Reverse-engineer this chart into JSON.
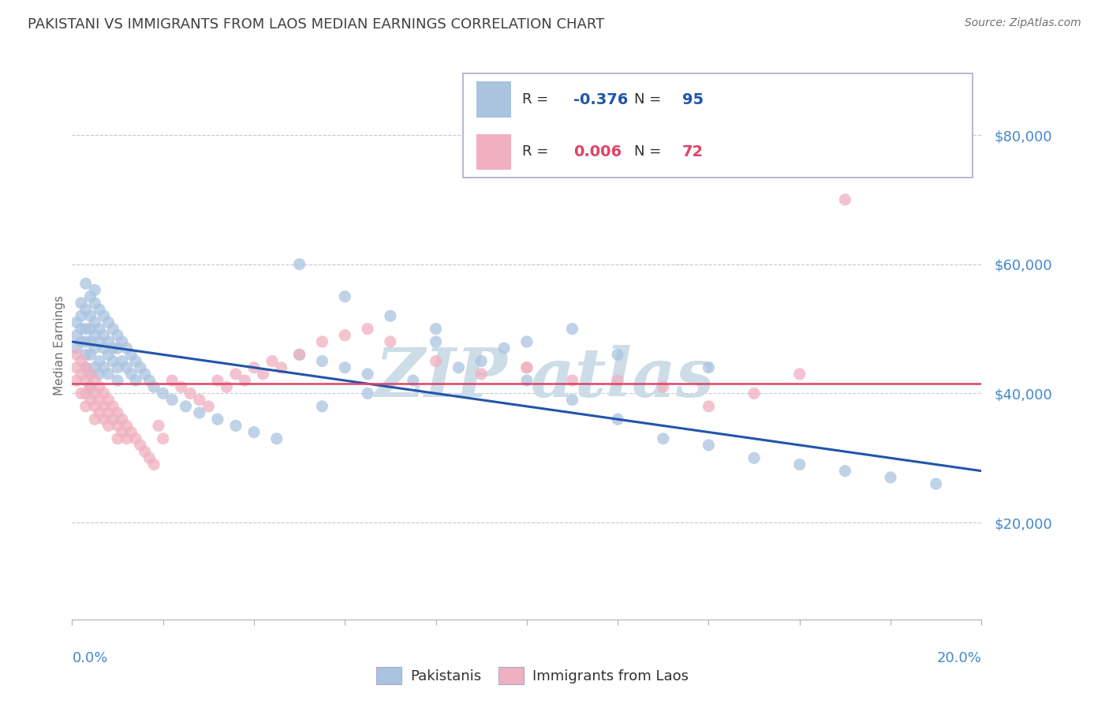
{
  "title": "PAKISTANI VS IMMIGRANTS FROM LAOS MEDIAN EARNINGS CORRELATION CHART",
  "source": "Source: ZipAtlas.com",
  "ylabel": "Median Earnings",
  "xmin": 0.0,
  "xmax": 0.2,
  "ymin": 5000,
  "ymax": 90000,
  "yticks": [
    20000,
    40000,
    60000,
    80000
  ],
  "blue_R": -0.376,
  "blue_N": 95,
  "pink_R": 0.006,
  "pink_N": 72,
  "blue_color": "#aac4e0",
  "pink_color": "#f0b0c0",
  "blue_line_color": "#2255aa",
  "pink_line_color": "#dd4466",
  "watermark_color": "#ccdde8",
  "legend_label_blue": "Pakistanis",
  "legend_label_pink": "Immigrants from Laos",
  "blue_trend_x0": 0.0,
  "blue_trend_x1": 0.2,
  "blue_trend_y0": 48000,
  "blue_trend_y1": 28000,
  "pink_trend_y": 41500,
  "grid_color": "#c8c8d0",
  "background_color": "#ffffff",
  "title_color": "#404040",
  "axis_label_color": "#4488cc",
  "ylabel_color": "#707070",
  "blue_dots_x": [
    0.001,
    0.001,
    0.001,
    0.002,
    0.002,
    0.002,
    0.002,
    0.003,
    0.003,
    0.003,
    0.003,
    0.003,
    0.003,
    0.004,
    0.004,
    0.004,
    0.004,
    0.004,
    0.004,
    0.004,
    0.005,
    0.005,
    0.005,
    0.005,
    0.005,
    0.005,
    0.006,
    0.006,
    0.006,
    0.006,
    0.006,
    0.007,
    0.007,
    0.007,
    0.007,
    0.008,
    0.008,
    0.008,
    0.008,
    0.009,
    0.009,
    0.009,
    0.01,
    0.01,
    0.01,
    0.01,
    0.011,
    0.011,
    0.012,
    0.012,
    0.013,
    0.013,
    0.014,
    0.014,
    0.015,
    0.016,
    0.017,
    0.018,
    0.02,
    0.022,
    0.025,
    0.028,
    0.032,
    0.036,
    0.04,
    0.045,
    0.05,
    0.055,
    0.06,
    0.065,
    0.07,
    0.08,
    0.09,
    0.1,
    0.11,
    0.12,
    0.13,
    0.14,
    0.15,
    0.16,
    0.17,
    0.18,
    0.19,
    0.05,
    0.06,
    0.08,
    0.1,
    0.12,
    0.14,
    0.11,
    0.095,
    0.085,
    0.075,
    0.065,
    0.055
  ],
  "blue_dots_y": [
    51000,
    49000,
    47000,
    52000,
    50000,
    48000,
    54000,
    53000,
    50000,
    48000,
    46000,
    44000,
    57000,
    55000,
    52000,
    50000,
    48000,
    46000,
    43000,
    41000,
    56000,
    54000,
    51000,
    49000,
    47000,
    44000,
    53000,
    50000,
    48000,
    45000,
    43000,
    52000,
    49000,
    47000,
    44000,
    51000,
    48000,
    46000,
    43000,
    50000,
    47000,
    45000,
    49000,
    47000,
    44000,
    42000,
    48000,
    45000,
    47000,
    44000,
    46000,
    43000,
    45000,
    42000,
    44000,
    43000,
    42000,
    41000,
    40000,
    39000,
    38000,
    37000,
    36000,
    35000,
    34000,
    33000,
    46000,
    45000,
    44000,
    43000,
    52000,
    48000,
    45000,
    42000,
    39000,
    36000,
    33000,
    32000,
    30000,
    29000,
    28000,
    27000,
    26000,
    60000,
    55000,
    50000,
    48000,
    46000,
    44000,
    50000,
    47000,
    44000,
    42000,
    40000,
    38000
  ],
  "pink_dots_x": [
    0.001,
    0.001,
    0.001,
    0.002,
    0.002,
    0.002,
    0.003,
    0.003,
    0.003,
    0.003,
    0.004,
    0.004,
    0.004,
    0.005,
    0.005,
    0.005,
    0.005,
    0.006,
    0.006,
    0.006,
    0.007,
    0.007,
    0.007,
    0.008,
    0.008,
    0.008,
    0.009,
    0.009,
    0.01,
    0.01,
    0.01,
    0.011,
    0.011,
    0.012,
    0.012,
    0.013,
    0.014,
    0.015,
    0.016,
    0.017,
    0.018,
    0.019,
    0.02,
    0.022,
    0.024,
    0.026,
    0.028,
    0.03,
    0.032,
    0.034,
    0.036,
    0.038,
    0.04,
    0.042,
    0.044,
    0.046,
    0.05,
    0.055,
    0.06,
    0.065,
    0.07,
    0.08,
    0.09,
    0.1,
    0.11,
    0.13,
    0.15,
    0.17,
    0.16,
    0.14,
    0.12,
    0.1
  ],
  "pink_dots_y": [
    46000,
    44000,
    42000,
    45000,
    43000,
    40000,
    44000,
    42000,
    40000,
    38000,
    43000,
    41000,
    39000,
    42000,
    40000,
    38000,
    36000,
    41000,
    39000,
    37000,
    40000,
    38000,
    36000,
    39000,
    37000,
    35000,
    38000,
    36000,
    37000,
    35000,
    33000,
    36000,
    34000,
    35000,
    33000,
    34000,
    33000,
    32000,
    31000,
    30000,
    29000,
    35000,
    33000,
    42000,
    41000,
    40000,
    39000,
    38000,
    42000,
    41000,
    43000,
    42000,
    44000,
    43000,
    45000,
    44000,
    46000,
    48000,
    49000,
    50000,
    48000,
    45000,
    43000,
    44000,
    42000,
    41000,
    40000,
    70000,
    43000,
    38000,
    42000,
    44000
  ]
}
